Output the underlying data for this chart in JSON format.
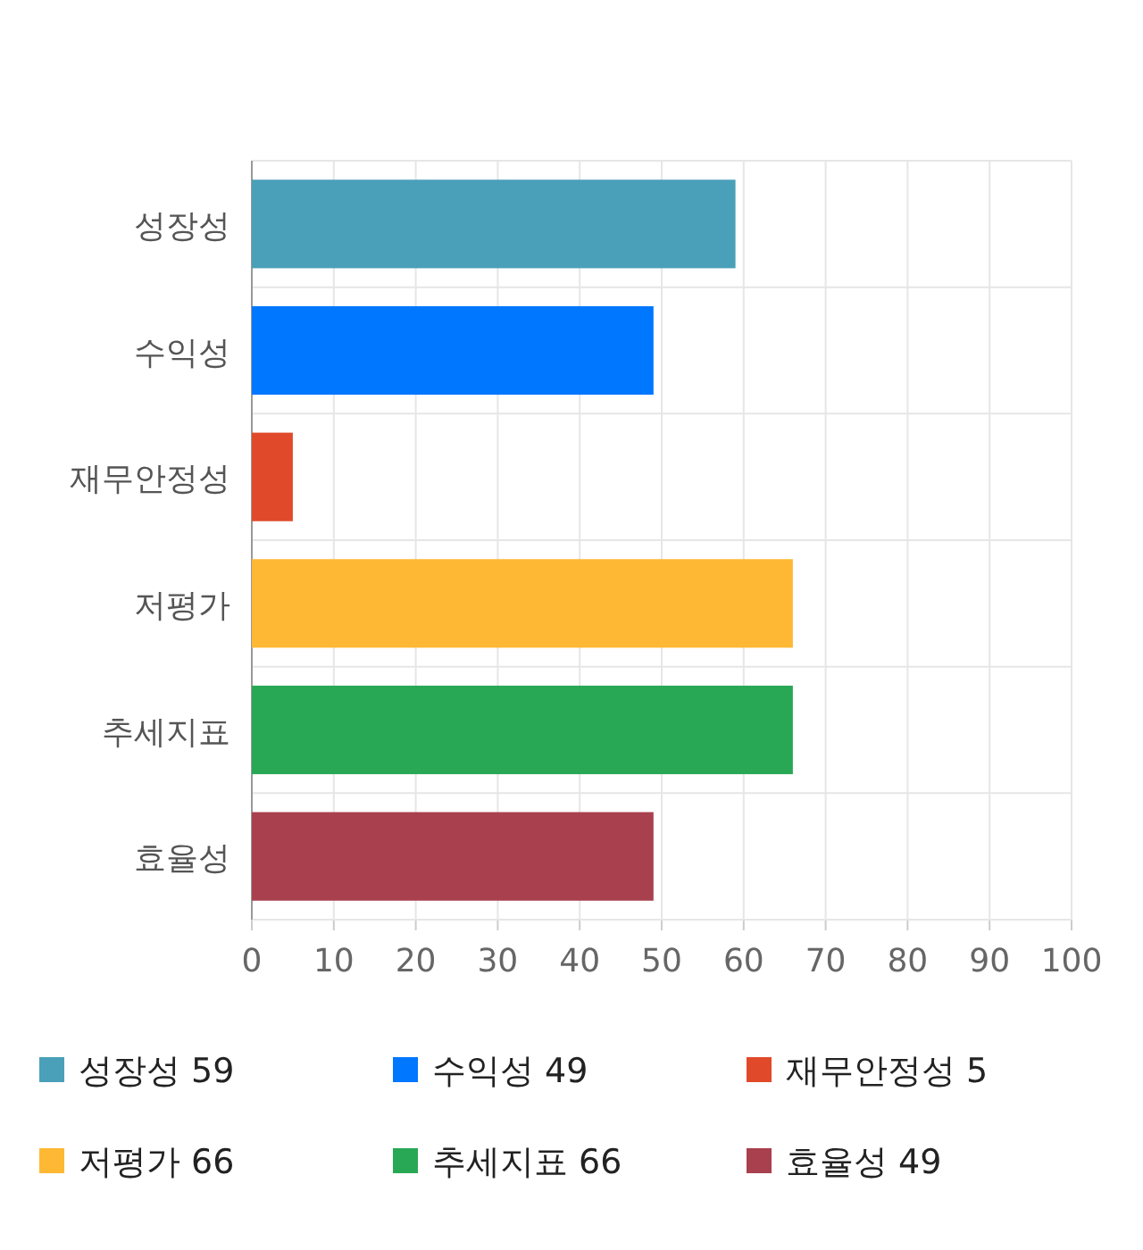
{
  "chart_data": {
    "type": "bar",
    "orientation": "horizontal",
    "stacked": true,
    "categories": [
      "성장성",
      "수익성",
      "재무안정성",
      "저평가",
      "추세지표",
      "효율성"
    ],
    "series": [
      {
        "name": "성장성 59",
        "color": "#4aa0b8",
        "values": [
          59,
          null,
          null,
          null,
          null,
          null
        ]
      },
      {
        "name": "수익성 49",
        "color": "#0077ff",
        "values": [
          null,
          49,
          null,
          null,
          null,
          null
        ]
      },
      {
        "name": "재무안정성 5",
        "color": "#e04a2a",
        "values": [
          null,
          null,
          5,
          null,
          null,
          null
        ]
      },
      {
        "name": "저평가 66",
        "color": "#ffb833",
        "values": [
          null,
          null,
          null,
          66,
          null,
          null
        ]
      },
      {
        "name": "추세지표 66",
        "color": "#28a855",
        "values": [
          null,
          null,
          null,
          null,
          66,
          null
        ]
      },
      {
        "name": "효율성 49",
        "color": "#a8404e",
        "values": [
          null,
          null,
          null,
          null,
          null,
          49
        ]
      }
    ],
    "xlim": [
      0,
      100
    ],
    "xticks": [
      0,
      10,
      20,
      30,
      40,
      50,
      60,
      70,
      80,
      90,
      100
    ],
    "grid": true,
    "legend": "bottom"
  }
}
